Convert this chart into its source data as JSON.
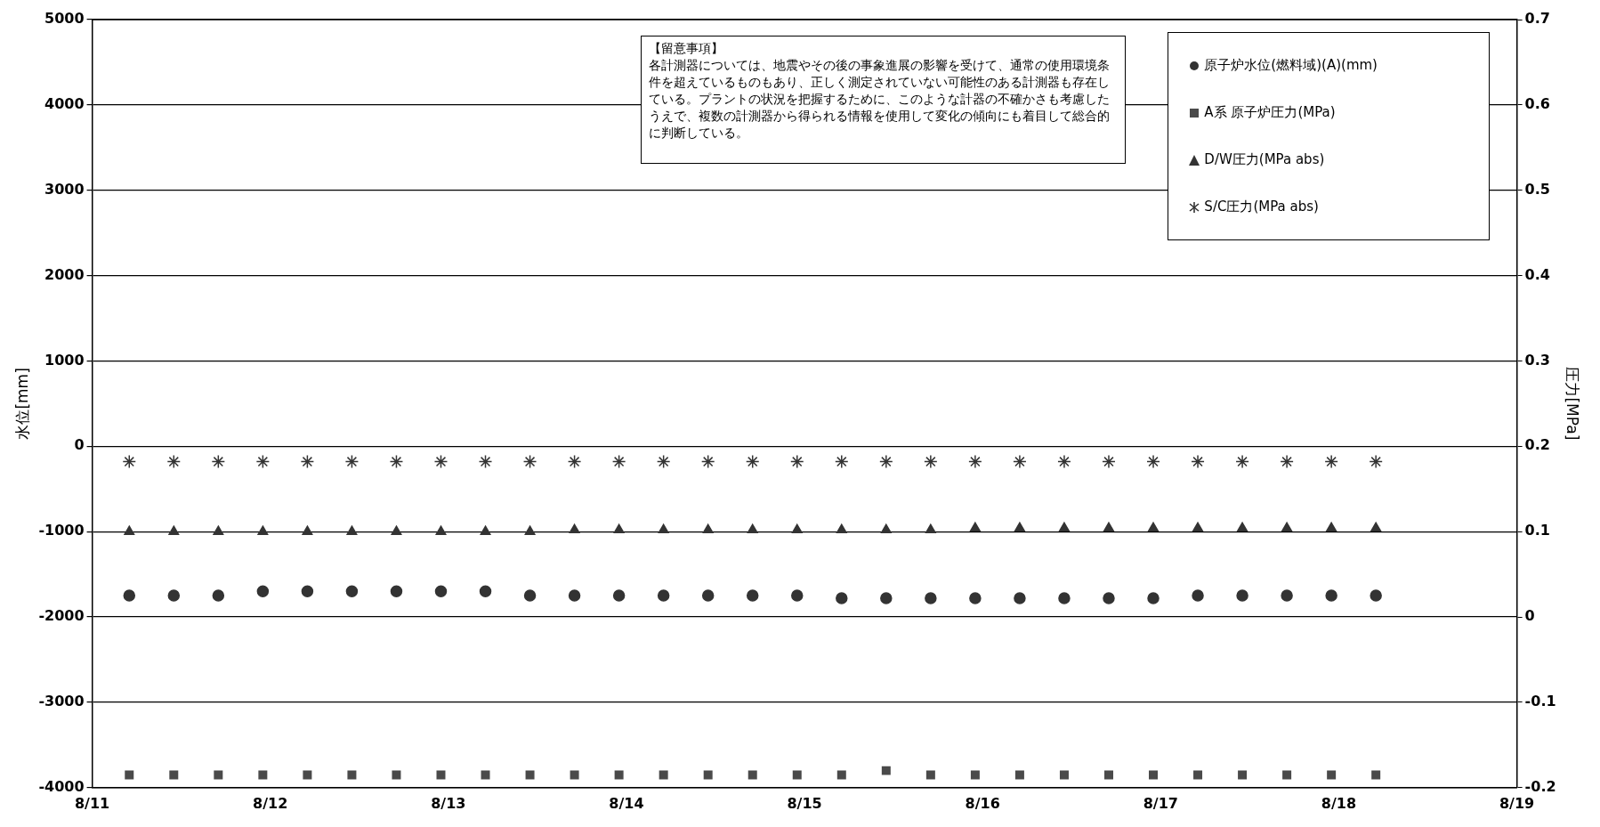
{
  "chart_data": {
    "type": "scatter",
    "ylabel": "水位[mm]",
    "y2label": "圧力[MPa]",
    "annotations": [
      "【留意事項】",
      "各計測器については、地震やその後の事象進展の影響を受けて、通常の使用環境条件を超えているものもあり、正しく測定されていない可能性のある計測器も存在している。プラントの状況を把握するために、このような計器の不確かさも考慮したうえで、複数の計測器から得られる情報を使用して変化の傾向にも着目して総合的に判断している。"
    ],
    "x": [
      "--08-11T05:00",
      "--08-11T11:00",
      "--08-11T17:00",
      "--08-11T23:00",
      "--08-12T05:00",
      "--08-12T11:00",
      "--08-12T17:00",
      "--08-12T23:00",
      "--08-13T05:00",
      "--08-13T11:00",
      "--08-13T17:00",
      "--08-13T23:00",
      "--08-14T05:00",
      "--08-14T11:00",
      "--08-14T17:00",
      "--08-14T23:00",
      "--08-15T05:00",
      "--08-15T11:00",
      "--08-15T17:00",
      "--08-15T23:00",
      "--08-16T05:00",
      "--08-16T11:00",
      "--08-16T17:00",
      "--08-16T23:00",
      "--08-17T05:00",
      "--08-17T11:00",
      "--08-17T17:00",
      "--08-17T23:00",
      "--08-18T05:00"
    ],
    "series": [
      {
        "name": "原子炉水位(燃料域)(A)(mm)",
        "color": "#333333",
        "marker": "circle",
        "values": [
          -1750,
          -1750,
          -1750,
          -1700,
          -1700,
          -1700,
          -1700,
          -1700,
          -1700,
          -1750,
          -1750,
          -1750,
          -1750,
          -1750,
          -1750,
          -1750,
          -1780,
          -1780,
          -1780,
          -1780,
          -1780,
          -1780,
          -1780,
          -1780,
          -1750,
          -1750,
          -1750,
          -1750,
          -1750
        ]
      },
      {
        "name": "A系 原子炉圧力(MPa)",
        "color": "#4a4a4a",
        "marker": "square",
        "axis": "y2",
        "values": [
          -0.185,
          -0.185,
          -0.185,
          -0.185,
          -0.185,
          -0.185,
          -0.185,
          -0.185,
          -0.185,
          -0.185,
          -0.185,
          -0.185,
          -0.185,
          -0.185,
          -0.185,
          -0.185,
          -0.185,
          -0.18,
          -0.185,
          -0.185,
          -0.185,
          -0.185,
          -0.185,
          -0.185,
          -0.185,
          -0.185,
          -0.185,
          -0.185,
          -0.185
        ]
      },
      {
        "name": "D/W圧力(MPa abs)",
        "color": "#333333",
        "marker": "triangle",
        "axis": "y2",
        "values": [
          0.1,
          0.1,
          0.1,
          0.1,
          0.1,
          0.1,
          0.1,
          0.1,
          0.1,
          0.1,
          0.102,
          0.102,
          0.102,
          0.102,
          0.102,
          0.102,
          0.102,
          0.102,
          0.102,
          0.104,
          0.104,
          0.104,
          0.104,
          0.104,
          0.104,
          0.104,
          0.104,
          0.104,
          0.104
        ]
      },
      {
        "name": "S/C圧力(MPa abs)",
        "color": "#333333",
        "marker": "cross",
        "axis": "y2",
        "values": [
          0.182,
          0.182,
          0.182,
          0.182,
          0.182,
          0.182,
          0.182,
          0.182,
          0.182,
          0.182,
          0.182,
          0.182,
          0.182,
          0.182,
          0.182,
          0.182,
          0.182,
          0.182,
          0.182,
          0.182,
          0.182,
          0.182,
          0.182,
          0.182,
          0.182,
          0.182,
          0.182,
          0.182,
          0.182
        ]
      }
    ],
    "xlim": [
      "--08-11",
      "--08-19"
    ],
    "xticks": [
      {
        "value": "--08-11",
        "label": "8/11"
      },
      {
        "value": "--08-12",
        "label": "8/12"
      },
      {
        "value": "--08-13",
        "label": "8/13"
      },
      {
        "value": "--08-14",
        "label": "8/14"
      },
      {
        "value": "--08-15",
        "label": "8/15"
      },
      {
        "value": "--08-16",
        "label": "8/16"
      },
      {
        "value": "--08-17",
        "label": "8/17"
      },
      {
        "value": "--08-18",
        "label": "8/18"
      },
      {
        "value": "--08-19",
        "label": "8/19"
      }
    ],
    "ylim": [
      -4000,
      5000
    ],
    "yticks": [
      -4000,
      -3000,
      -2000,
      -1000,
      0,
      1000,
      2000,
      3000,
      4000,
      5000
    ],
    "y2lim": [
      -0.2,
      0.7
    ],
    "y2ticks": [
      -0.2,
      -0.1,
      0,
      0.1,
      0.2,
      0.3,
      0.4,
      0.5,
      0.6,
      0.7
    ],
    "grid": "y",
    "legend": "top right"
  }
}
